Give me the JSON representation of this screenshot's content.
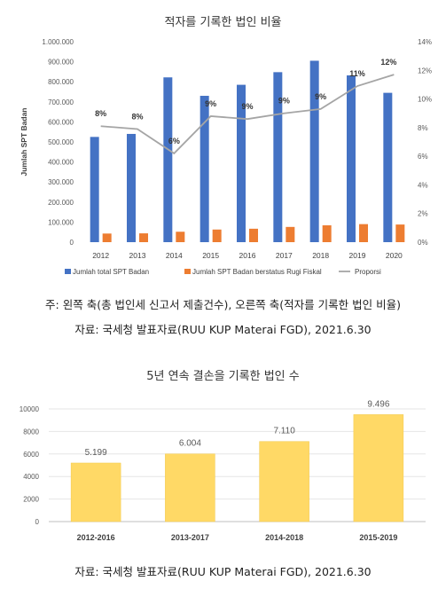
{
  "chart1": {
    "title": "적자를 기록한 법인 비율",
    "note": "주: 왼쪽 축(총 법인세 신고서 제출건수), 오른쪽 축(적자를 기록한 법인 비율)",
    "source": "자료: 국세청 발표자료(RUU KUP Materai FGD), 2021.6.30",
    "colors": {
      "total": "#4472C4",
      "loss": "#ED7D31",
      "ratio": "#A5A5A5"
    }
  },
  "chart2": {
    "title": "5년 연속 결손을 기록한 법인 수",
    "source": "자료: 국세청 발표자료(RUU KUP Materai FGD), 2021.6.30",
    "colors": {
      "bar": "#FFD966",
      "bar_border": "#F2C94C"
    }
  },
  "chart_data": [
    {
      "type": "bar",
      "categories": [
        "2012",
        "2013",
        "2014",
        "2015",
        "2016",
        "2017",
        "2018",
        "2019",
        "2020"
      ],
      "series": [
        {
          "name": "Jumlah total SPT Badan",
          "type": "bar",
          "axis": "left",
          "values": [
            525000,
            540000,
            822000,
            730000,
            785000,
            848000,
            905000,
            832000,
            745000
          ]
        },
        {
          "name": "Jumlah SPT Badan berstatus Rugi Fiskal",
          "type": "bar",
          "axis": "left",
          "values": [
            43000,
            44000,
            52000,
            63000,
            67000,
            76000,
            84000,
            90000,
            88000
          ]
        },
        {
          "name": "Proporsi",
          "type": "line",
          "axis": "right",
          "values": [
            8.1,
            7.9,
            6.2,
            8.8,
            8.6,
            9.0,
            9.3,
            10.9,
            11.7
          ],
          "labels": [
            "8%",
            "8%",
            "6%",
            "9%",
            "9%",
            "9%",
            "9%",
            "11%",
            "12%"
          ]
        }
      ],
      "ylabel": "Jumlah SPT Badan",
      "ylim": [
        0,
        1000000
      ],
      "yticks": [
        "0",
        "100.000",
        "200.000",
        "300.000",
        "400.000",
        "500.000",
        "600.000",
        "700.000",
        "800.000",
        "900.000",
        "1.000.000"
      ],
      "y2lim": [
        0,
        14
      ],
      "y2ticks": [
        "0%",
        "2%",
        "4%",
        "6%",
        "8%",
        "10%",
        "12%",
        "14%"
      ],
      "legend": "bottom",
      "grid": false
    },
    {
      "type": "bar",
      "categories": [
        "2012-2016",
        "2013-2017",
        "2014-2018",
        "2015-2019"
      ],
      "values": [
        5199,
        6004,
        7110,
        9496
      ],
      "labels": [
        "5.199",
        "6.004",
        "7.110",
        "9.496"
      ],
      "ylim": [
        0,
        10000
      ],
      "yticks": [
        "0",
        "2000",
        "4000",
        "6000",
        "8000",
        "10000"
      ],
      "grid": true
    }
  ]
}
